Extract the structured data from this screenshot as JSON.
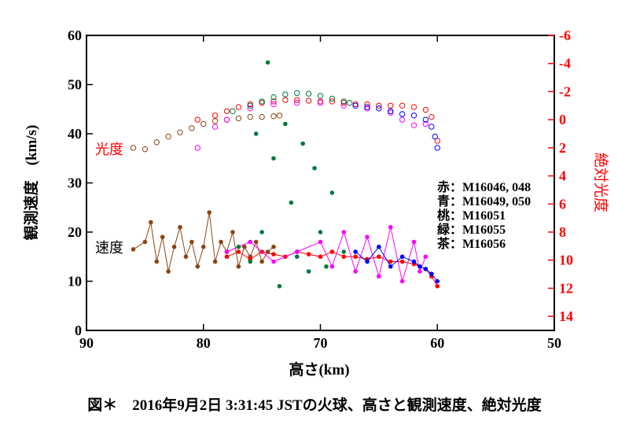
{
  "caption": "図＊　2016年9月2日 3:31:45 JSTの火球、高さと観測速度、絶対光度",
  "chart_data": {
    "type": "scatter",
    "xlabel": "高さ(km)",
    "ylabel": "観測速度　(km/s)",
    "ylabel_right": "絶対光度",
    "xlim": [
      90,
      50
    ],
    "ylim": [
      0,
      60
    ],
    "ylim_right": [
      15,
      -6
    ],
    "x_ticks": [
      90,
      80,
      70,
      60,
      50
    ],
    "y_ticks": [
      0,
      10,
      20,
      30,
      40,
      50,
      60
    ],
    "y_right_ticks": [
      14,
      12,
      10,
      8,
      6,
      4,
      2,
      0,
      -2,
      -4,
      -6
    ],
    "y_right_tick_labels": [
      "14",
      "12",
      "10",
      "8",
      "6",
      "4",
      "2",
      "0",
      "-2",
      "-4",
      "-6"
    ],
    "annotations": [
      {
        "text": "光度",
        "color": "#ff0000"
      },
      {
        "text": "速度",
        "color": "#000000"
      }
    ],
    "legend_lines": [
      "赤：M16046, 048",
      "青：M16049, 050",
      "桃：M16051",
      "緑：M16055",
      "茶：M16056"
    ],
    "colors": {
      "red": "#ff0000",
      "blue": "#0000ff",
      "pink": "#ff00ff",
      "green": "#007a3d",
      "brown": "#8b4513",
      "right_axis": "#ff0000"
    },
    "magnitude_series": [
      {
        "color_key": "brown",
        "points": [
          [
            86.0,
            2.0
          ],
          [
            85.0,
            2.1
          ],
          [
            84.0,
            1.6
          ],
          [
            83.0,
            1.2
          ],
          [
            82.0,
            0.9
          ],
          [
            81.0,
            0.6
          ],
          [
            80.0,
            0.3
          ],
          [
            79.0,
            0.1
          ],
          [
            78.0,
            0.0
          ],
          [
            77.0,
            -0.1
          ],
          [
            76.0,
            -0.2
          ],
          [
            75.0,
            -0.2
          ],
          [
            74.0,
            -0.25
          ],
          [
            73.5,
            -0.3
          ]
        ]
      },
      {
        "color_key": "red",
        "points": [
          [
            80.5,
            0.0
          ],
          [
            79.0,
            -0.3
          ],
          [
            78.0,
            -0.6
          ],
          [
            77.0,
            -0.9
          ],
          [
            76.0,
            -1.1
          ],
          [
            75.0,
            -1.2
          ],
          [
            74.0,
            -1.3
          ],
          [
            73.0,
            -1.4
          ],
          [
            72.0,
            -1.4
          ],
          [
            71.0,
            -1.35
          ],
          [
            70.0,
            -1.3
          ],
          [
            69.0,
            -1.3
          ],
          [
            68.0,
            -1.2
          ],
          [
            67.0,
            -1.1
          ],
          [
            66.0,
            -1.1
          ],
          [
            65.0,
            -1.0
          ],
          [
            64.0,
            -1.0
          ],
          [
            63.0,
            -1.0
          ],
          [
            62.0,
            -0.9
          ],
          [
            61.0,
            -0.7
          ],
          [
            60.5,
            -0.2
          ],
          [
            60.0,
            1.5
          ]
        ]
      },
      {
        "color_key": "pink",
        "points": [
          [
            80.5,
            2.0
          ],
          [
            79.0,
            0.5
          ],
          [
            78.0,
            0.0
          ],
          [
            76.0,
            -0.8
          ],
          [
            74.0,
            -1.1
          ],
          [
            72.0,
            -1.2
          ],
          [
            70.0,
            -1.2
          ],
          [
            68.0,
            -1.0
          ],
          [
            66.0,
            -0.8
          ],
          [
            64.0,
            -0.5
          ],
          [
            63.0,
            0.0
          ],
          [
            62.0,
            0.4
          ],
          [
            61.0,
            0.3
          ]
        ]
      },
      {
        "color_key": "blue",
        "points": [
          [
            67.0,
            -1.0
          ],
          [
            66.0,
            -0.9
          ],
          [
            65.0,
            -0.8
          ],
          [
            64.0,
            -0.6
          ],
          [
            63.0,
            -0.4
          ],
          [
            62.0,
            -0.3
          ],
          [
            61.0,
            0.0
          ],
          [
            60.5,
            0.5
          ],
          [
            60.2,
            1.2
          ],
          [
            60.0,
            2.0
          ]
        ]
      },
      {
        "color_key": "green",
        "points": [
          [
            77.5,
            -0.6
          ],
          [
            76.0,
            -1.0
          ],
          [
            75.0,
            -1.3
          ],
          [
            74.0,
            -1.6
          ],
          [
            73.0,
            -1.8
          ],
          [
            72.0,
            -1.9
          ],
          [
            71.0,
            -1.85
          ],
          [
            70.0,
            -1.7
          ],
          [
            69.0,
            -1.5
          ],
          [
            68.0,
            -1.3
          ],
          [
            67.5,
            -1.2
          ]
        ]
      }
    ],
    "velocity_series": [
      {
        "color_key": "brown",
        "points": [
          [
            86.0,
            16.5
          ],
          [
            85.0,
            18.0
          ],
          [
            84.5,
            22.0
          ],
          [
            84.0,
            14.0
          ],
          [
            83.5,
            19.0
          ],
          [
            83.0,
            12.0
          ],
          [
            82.5,
            17.0
          ],
          [
            82.0,
            21.0
          ],
          [
            81.5,
            15.0
          ],
          [
            81.0,
            18.0
          ],
          [
            80.5,
            13.0
          ],
          [
            80.0,
            17.0
          ],
          [
            79.5,
            24.0
          ],
          [
            79.0,
            14.0
          ],
          [
            78.5,
            18.0
          ],
          [
            78.0,
            16.0
          ],
          [
            77.5,
            20.0
          ],
          [
            77.0,
            13.0
          ],
          [
            76.5,
            17.0
          ],
          [
            76.0,
            15.0
          ],
          [
            75.5,
            18.0
          ],
          [
            75.0,
            14.0
          ],
          [
            74.5,
            16.0
          ],
          [
            74.0,
            17.0
          ]
        ]
      },
      {
        "color_key": "red",
        "points": [
          [
            78.0,
            15.0
          ],
          [
            77.0,
            16.0
          ],
          [
            76.0,
            14.5
          ],
          [
            75.0,
            16.0
          ],
          [
            74.0,
            15.5
          ],
          [
            73.0,
            15.0
          ],
          [
            72.0,
            16.0
          ],
          [
            71.0,
            15.5
          ],
          [
            70.0,
            15.0
          ],
          [
            69.0,
            16.0
          ],
          [
            68.0,
            15.0
          ],
          [
            67.0,
            15.0
          ],
          [
            66.0,
            14.5
          ],
          [
            65.0,
            15.0
          ],
          [
            64.0,
            14.0
          ],
          [
            63.0,
            14.0
          ],
          [
            62.0,
            13.5
          ],
          [
            61.0,
            12.5
          ],
          [
            60.5,
            11.0
          ],
          [
            60.0,
            9.0
          ]
        ]
      },
      {
        "color_key": "pink",
        "points": [
          [
            78.0,
            16.0
          ],
          [
            76.0,
            18.0
          ],
          [
            74.0,
            14.0
          ],
          [
            72.0,
            16.0
          ],
          [
            70.0,
            18.0
          ],
          [
            69.0,
            13.0
          ],
          [
            68.0,
            20.0
          ],
          [
            67.0,
            12.0
          ],
          [
            66.0,
            19.0
          ],
          [
            65.0,
            11.0
          ],
          [
            64.0,
            21.0
          ],
          [
            63.0,
            10.0
          ],
          [
            62.0,
            18.0
          ],
          [
            61.5,
            12.0
          ],
          [
            61.0,
            15.0
          ]
        ]
      },
      {
        "color_key": "blue",
        "points": [
          [
            67.0,
            16.0
          ],
          [
            66.0,
            14.0
          ],
          [
            65.0,
            17.0
          ],
          [
            64.0,
            13.0
          ],
          [
            63.0,
            15.0
          ],
          [
            62.0,
            14.0
          ],
          [
            61.5,
            13.0
          ],
          [
            61.0,
            12.5
          ],
          [
            60.5,
            11.5
          ],
          [
            60.0,
            10.0
          ]
        ]
      },
      {
        "color_key": "green",
        "points": [
          [
            77.0,
            17.0
          ],
          [
            76.0,
            14.0
          ],
          [
            75.5,
            40.0
          ],
          [
            75.0,
            20.0
          ],
          [
            74.5,
            54.5
          ],
          [
            74.0,
            35.0
          ],
          [
            73.5,
            9.0
          ],
          [
            73.0,
            42.0
          ],
          [
            72.5,
            26.0
          ],
          [
            72.0,
            15.0
          ],
          [
            71.5,
            38.0
          ],
          [
            71.0,
            12.0
          ],
          [
            70.5,
            33.0
          ],
          [
            70.0,
            20.0
          ],
          [
            69.5,
            13.0
          ],
          [
            69.0,
            28.0
          ],
          [
            68.0,
            16.0
          ]
        ]
      }
    ]
  }
}
